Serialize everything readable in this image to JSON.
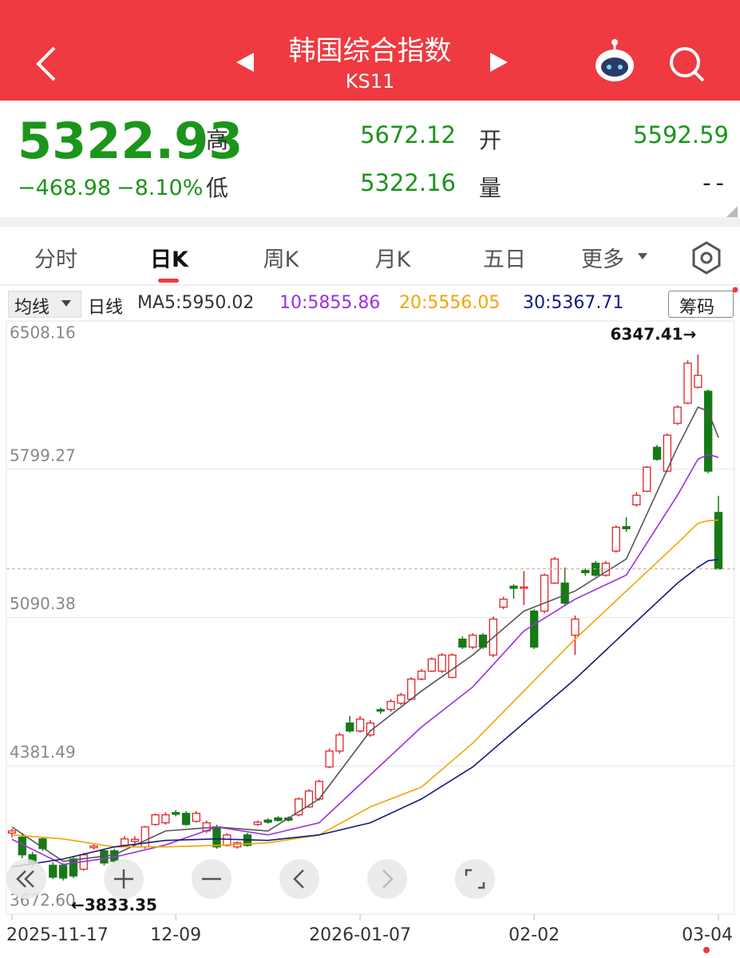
{
  "header": {
    "title": "韩国综合指数",
    "code": "KS11"
  },
  "quote": {
    "price": 5322.93,
    "change": "−468.98",
    "change_pct": "−8.10%",
    "high_label": "高",
    "high": 5672.12,
    "low_label": "低",
    "low": 5322.16,
    "open_label": "开",
    "open": 5592.59,
    "volume_label": "量",
    "volume": "--"
  },
  "tabs": [
    "分时",
    "日K",
    "周K",
    "月K",
    "五日",
    "更多"
  ],
  "chart_data": {
    "type": "candlestick",
    "indicator_button": "均线",
    "period": "日线",
    "chips_button": "筹码",
    "categories": [
      "2025-11-17",
      null,
      null,
      null,
      null,
      null,
      null,
      null,
      null,
      null,
      null,
      null,
      null,
      null,
      null,
      null,
      "12-09",
      null,
      null,
      null,
      null,
      null,
      null,
      null,
      null,
      null,
      null,
      null,
      null,
      null,
      null,
      null,
      null,
      null,
      "2026-01-07",
      null,
      null,
      null,
      null,
      null,
      null,
      null,
      null,
      null,
      null,
      null,
      null,
      null,
      null,
      null,
      null,
      "02-02",
      null,
      null,
      null,
      null,
      null,
      null,
      null,
      null,
      null,
      null,
      null,
      null,
      null,
      null,
      null,
      null,
      null,
      "03-04"
    ],
    "open": [
      4060,
      4040,
      3956,
      4032,
      3906,
      3906,
      3936,
      3887,
      3990,
      3975,
      3975,
      4001,
      4020,
      3994,
      4101,
      4109,
      4158,
      4154,
      4116,
      4070,
      4089,
      4001,
      3994,
      4051,
      4101,
      4122,
      4132,
      4132,
      4147,
      4185,
      4223,
      4376,
      4452,
      4586,
      4548,
      4529,
      4650,
      4651,
      4681,
      4700,
      4796,
      4834,
      4834,
      4804,
      4987,
      4949,
      5006,
      4911,
      5140,
      5240,
      5230,
      5121,
      5121,
      5255,
      5255,
      5006,
      5315,
      5350,
      5293,
      5408,
      5525,
      5629,
      5694,
      5904,
      5790,
      6019,
      6115,
      6191,
      6172,
      5592.59
    ],
    "high": [
      4080,
      4060,
      3970,
      4040,
      3920,
      3915,
      3950,
      3965,
      4010,
      3985,
      3985,
      4045,
      4045,
      4095,
      4155,
      4160,
      4170,
      4165,
      4165,
      4120,
      4100,
      4060,
      4020,
      4060,
      4120,
      4130,
      4140,
      4140,
      4230,
      4270,
      4315,
      4465,
      4540,
      4620,
      4620,
      4600,
      4660,
      4700,
      4730,
      4805,
      4845,
      4900,
      4920,
      4920,
      5000,
      5015,
      5015,
      5095,
      5190,
      5250,
      5312,
      5130,
      5300,
      5380,
      5330,
      5100,
      5325,
      5360,
      5360,
      5530,
      5570,
      5690,
      5815,
      5915,
      5970,
      6105,
      6320,
      6347.41,
      6180,
      5672.12
    ],
    "low": [
      4040,
      3940,
      3900,
      3975,
      3840,
      3833.35,
      3845,
      3880,
      3980,
      3905,
      3915,
      3995,
      4010,
      3985,
      4095,
      4100,
      4140,
      4095,
      4110,
      4060,
      3985,
      3995,
      3985,
      3995,
      4095,
      4105,
      4115,
      4115,
      4140,
      4180,
      4215,
      4370,
      4440,
      4540,
      4540,
      4520,
      4630,
      4640,
      4670,
      4695,
      4790,
      4830,
      4825,
      4800,
      4940,
      4940,
      4940,
      4900,
      5130,
      5180,
      5150,
      4940,
      5110,
      5250,
      5150,
      4911,
      5290,
      5285,
      5285,
      5400,
      5500,
      5620,
      5690,
      5840,
      5785,
      6010,
      6110,
      6185,
      5780,
      5322.16
    ],
    "close": [
      4070,
      3956,
      3917,
      3986,
      3849,
      3845,
      3855,
      3956,
      3998,
      3917,
      3925,
      4032,
      4030,
      4089,
      4147,
      4147,
      4150,
      4101,
      4154,
      4109,
      3994,
      4051,
      4013,
      4001,
      4112,
      4112,
      4120,
      4122,
      4223,
      4261,
      4307,
      4452,
      4529,
      4548,
      4605,
      4586,
      4643,
      4689,
      4720,
      4796,
      4834,
      4892,
      4911,
      4911,
      4949,
      5006,
      4949,
      5083,
      5178,
      5230,
      5236,
      4949,
      5293,
      5370,
      5159,
      5083,
      5305,
      5293,
      5350,
      5522,
      5515,
      5675,
      5809,
      5847,
      5962,
      6096,
      6306,
      6248,
      5790,
      5322.93
    ],
    "up_color": "#e0262e",
    "down_color": "#167a16",
    "series": [
      {
        "name": "MA5:5950.02",
        "color": "#555555",
        "x": [
          0,
          5,
          10,
          15,
          20,
          25,
          30,
          35,
          40,
          45,
          50,
          55,
          60,
          65,
          67,
          68,
          69
        ],
        "values": [
          4089,
          3925,
          3956,
          4070,
          4089,
          4070,
          4223,
          4548,
          4739,
          4911,
          5121,
          5217,
          5370,
          5904,
          6096,
          6077,
          5950.02
        ]
      },
      {
        "name": "10:5855.86",
        "color": "#9b2fe0",
        "x": [
          0,
          5,
          10,
          15,
          20,
          25,
          30,
          35,
          40,
          45,
          50,
          55,
          60,
          65,
          67,
          68,
          69
        ],
        "values": [
          4030,
          3910,
          3945,
          4003,
          4089,
          4051,
          4109,
          4338,
          4567,
          4758,
          5026,
          5178,
          5293,
          5675,
          5847,
          5870,
          5855.86
        ]
      },
      {
        "name": "20:5556.05",
        "color": "#f0a500",
        "x": [
          0,
          5,
          10,
          15,
          20,
          25,
          30,
          35,
          40,
          45,
          50,
          55,
          60,
          65,
          67,
          68,
          69
        ],
        "values": [
          4051,
          4032,
          3994,
          3994,
          4001,
          4013,
          4051,
          4185,
          4280,
          4490,
          4739,
          4987,
          5217,
          5446,
          5541,
          5553,
          5556.05
        ]
      },
      {
        "name": "30:5367.71",
        "color": "#141a80",
        "x": [
          0,
          5,
          10,
          15,
          20,
          25,
          30,
          35,
          40,
          45,
          50,
          55,
          60,
          65,
          67,
          68,
          69
        ],
        "values": [
          3898,
          3936,
          3994,
          4025,
          4032,
          4025,
          4051,
          4109,
          4223,
          4376,
          4586,
          4796,
          5026,
          5255,
          5331,
          5362,
          5367.71
        ]
      }
    ],
    "ylim": [
      3672.6,
      6508.16
    ],
    "yticks": [
      6508.16,
      5799.27,
      5090.38,
      4381.49,
      {
        "value": 3672.6,
        "label": "3672.60"
      }
    ],
    "grid": true,
    "max_annotation": "6347.41→",
    "min_annotation": "←3833.35"
  }
}
